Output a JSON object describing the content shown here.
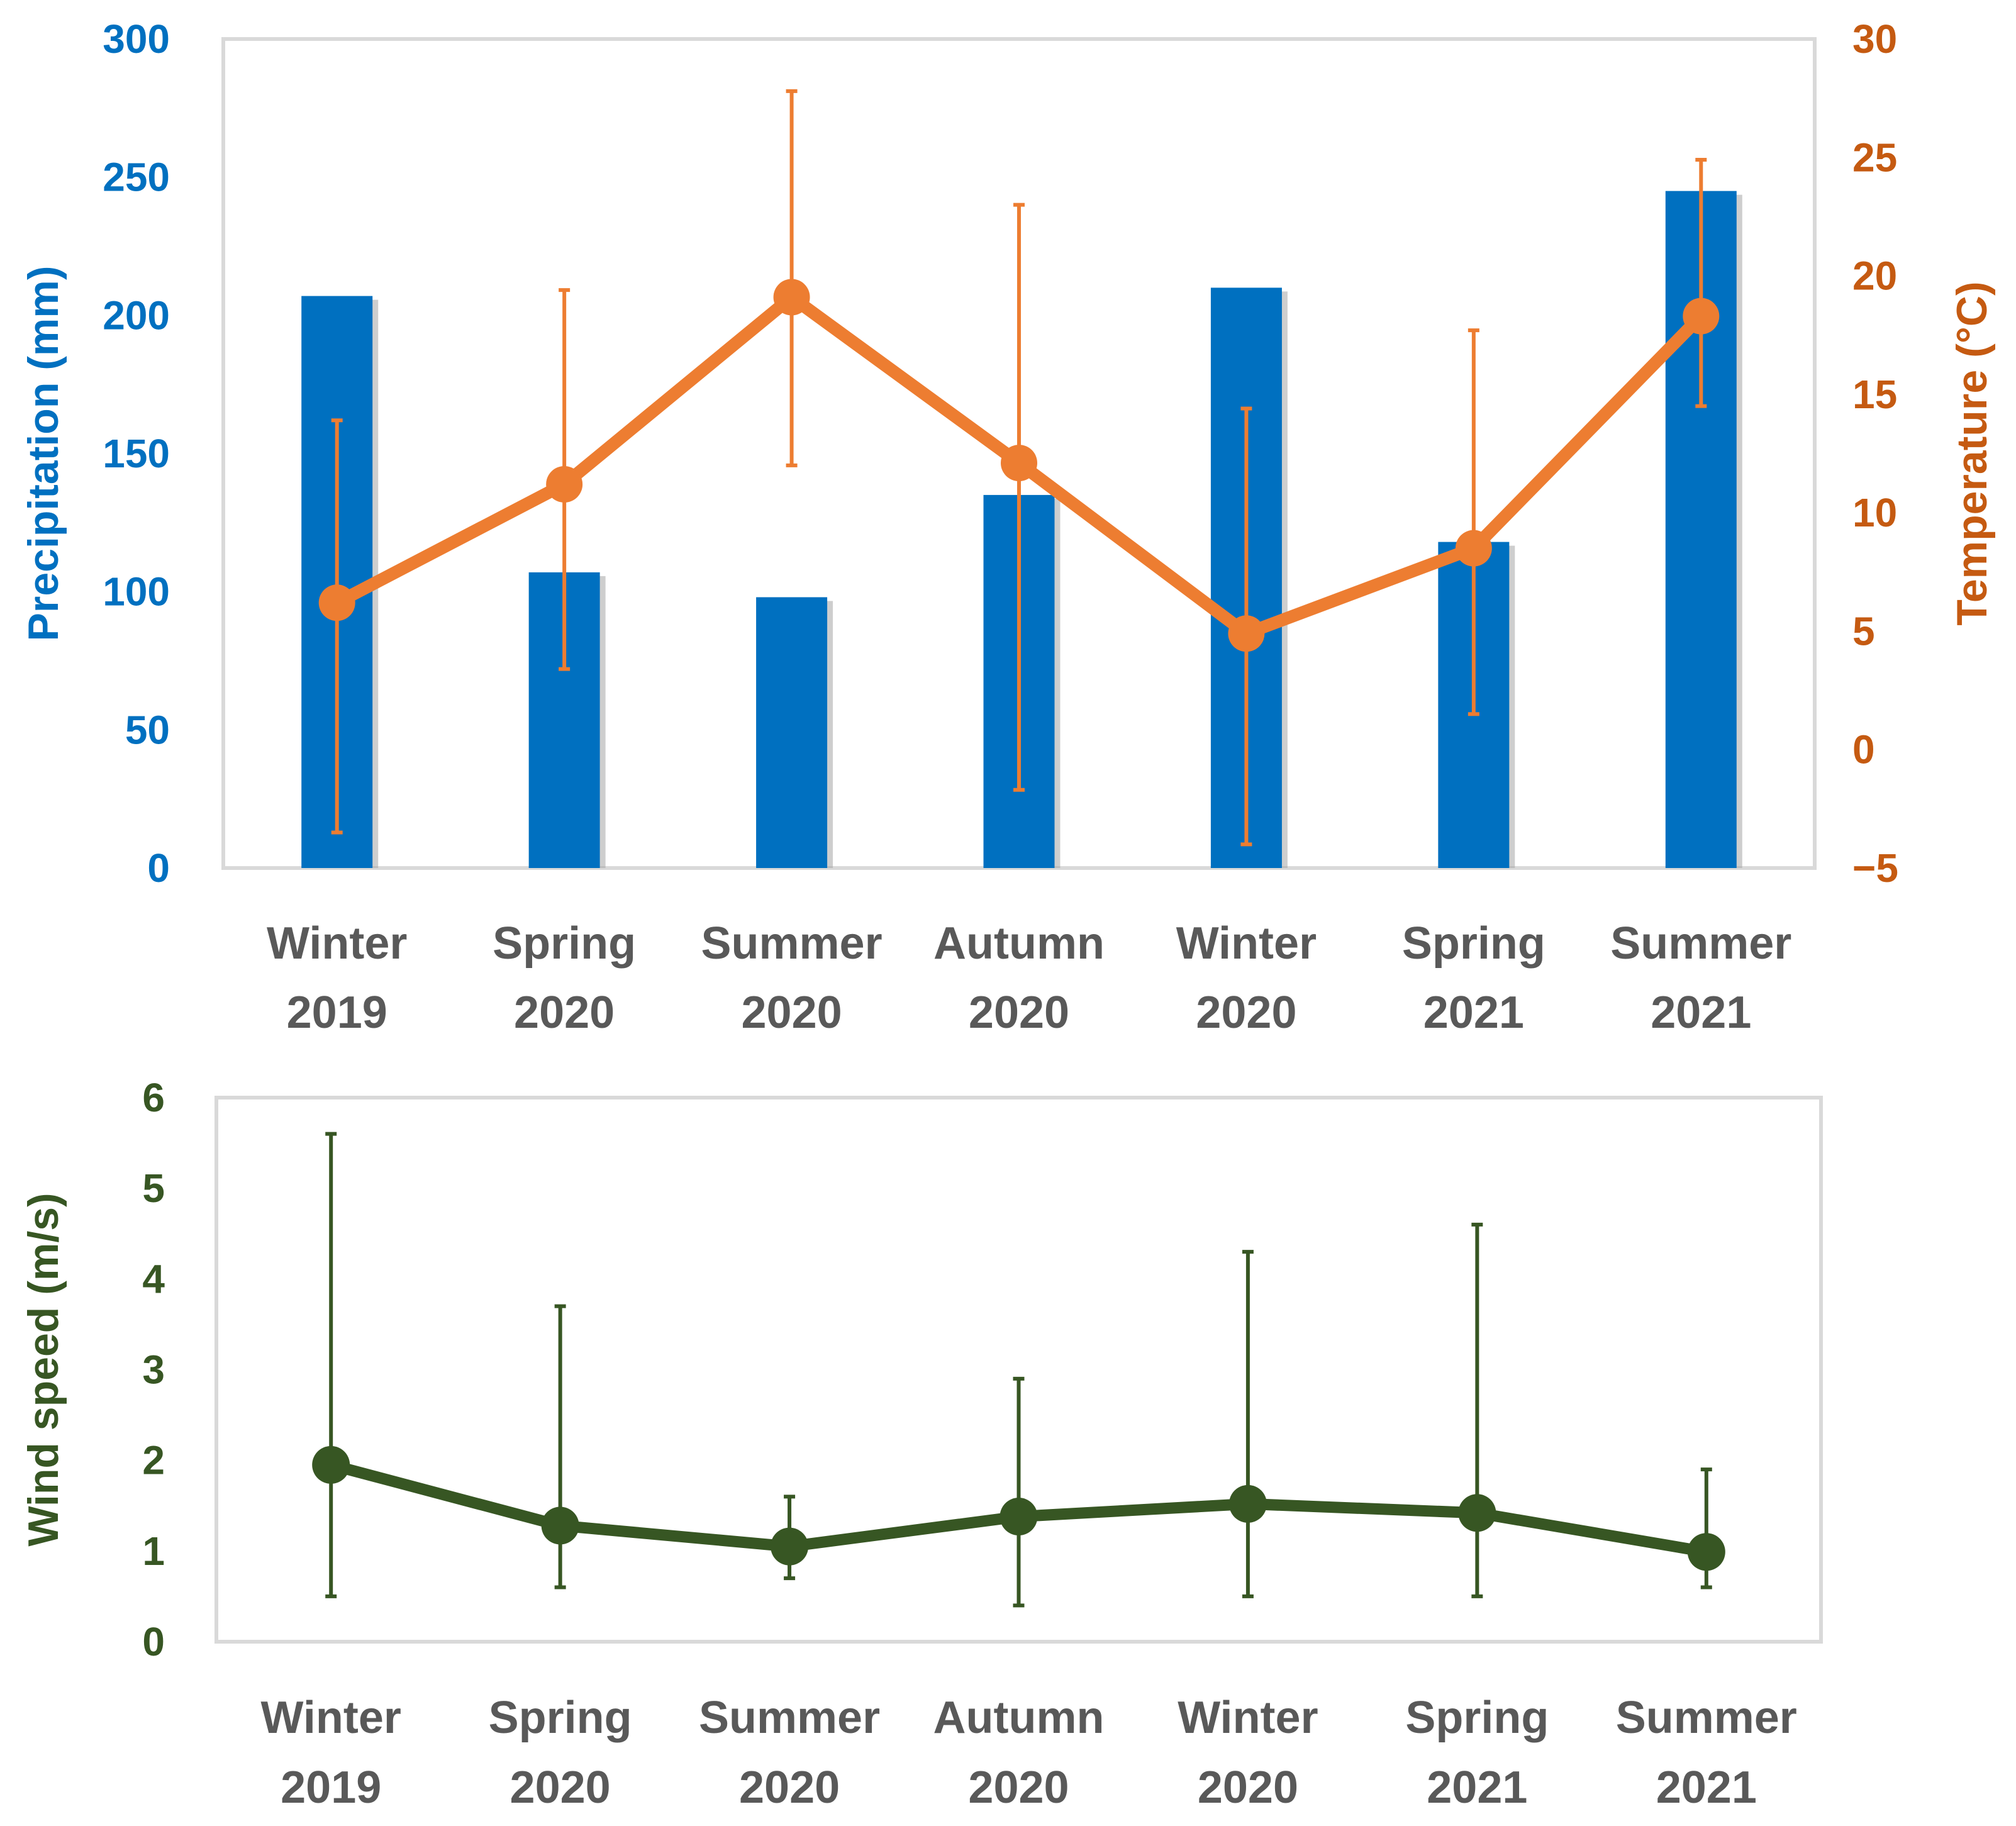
{
  "colors": {
    "precip": "#0070C0",
    "precip_label": "#0070C0",
    "temp": "#ED7D31",
    "temp_label": "#C55A11",
    "wind": "#375623",
    "category_text": "#595959",
    "plot_border": "#D9D9D9"
  },
  "chart_data": [
    {
      "type": "bar+line",
      "categories": [
        [
          "Winter",
          "2019"
        ],
        [
          "Spring",
          "2020"
        ],
        [
          "Summer",
          "2020"
        ],
        [
          "Autumn",
          "2020"
        ],
        [
          "Winter",
          "2020"
        ],
        [
          "Spring",
          "2021"
        ],
        [
          "Summer",
          "2021"
        ]
      ],
      "series": [
        {
          "name": "Precipitation",
          "type": "bar",
          "axis": "left",
          "values": [
            207,
            107,
            98,
            135,
            210,
            118,
            245
          ]
        },
        {
          "name": "Temperature",
          "type": "line",
          "axis": "right",
          "values": [
            6.2,
            11.2,
            19.1,
            12.1,
            4.9,
            8.5,
            18.3
          ],
          "error_low": [
            -3.5,
            3.4,
            12.0,
            -1.7,
            -4.0,
            1.5,
            14.5
          ],
          "error_high": [
            13.9,
            19.4,
            27.8,
            23.0,
            14.4,
            17.7,
            24.9
          ]
        }
      ],
      "ylabel": "Precipitation (mm)",
      "ylim": [
        0,
        300
      ],
      "yticks": [
        0,
        50,
        100,
        150,
        200,
        250,
        300
      ],
      "y2label": "Temperature (°C)",
      "y2lim": [
        -5,
        30
      ],
      "y2ticks": [
        "−5",
        "0",
        "5",
        "10",
        "15",
        "20",
        "25",
        "30"
      ],
      "y2tick_values": [
        -5,
        0,
        5,
        10,
        15,
        20,
        25,
        30
      ]
    },
    {
      "type": "line",
      "categories": [
        [
          "Winter",
          "2019"
        ],
        [
          "Spring",
          "2020"
        ],
        [
          "Summer",
          "2020"
        ],
        [
          "Autumn",
          "2020"
        ],
        [
          "Winter",
          "2020"
        ],
        [
          "Spring",
          "2021"
        ],
        [
          "Summer",
          "2021"
        ]
      ],
      "series": [
        {
          "name": "Wind speed",
          "values": [
            1.95,
            1.28,
            1.05,
            1.38,
            1.52,
            1.42,
            0.99
          ],
          "error_low": [
            0.5,
            0.6,
            0.7,
            0.4,
            0.5,
            0.5,
            0.6
          ],
          "error_high": [
            5.6,
            3.7,
            1.6,
            2.9,
            4.3,
            4.6,
            1.9
          ]
        }
      ],
      "ylabel": "Wind speed (m/s)",
      "ylim": [
        0,
        6
      ],
      "yticks": [
        0,
        1,
        2,
        3,
        4,
        5,
        6
      ]
    }
  ]
}
